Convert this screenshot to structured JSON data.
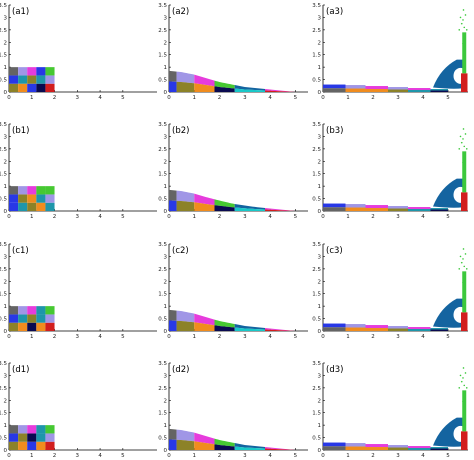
{
  "colors": {
    "dark_gray": "#646464",
    "pink": "#e63cdc",
    "green": "#46c832",
    "light_purple": "#a096e6",
    "teal": "#1e96aa",
    "blue": "#2838e6",
    "olive": "#8c8228",
    "orange": "#f08c1e",
    "navy": "#0a0a50",
    "red": "#d21e1e",
    "cyan": "#19c8c8",
    "ocean_blue": "#1464a0",
    "light_green": "#3cc83c",
    "axis": "#000000"
  },
  "chart_data": [
    {
      "type": "scatter",
      "panel_label": "(a1)",
      "variant": "initial",
      "xlim": [
        0,
        6.5
      ],
      "ylim": [
        0,
        3.5
      ],
      "xticks": [
        0,
        1,
        2,
        3,
        4,
        5
      ],
      "yticks": [
        0,
        0.5,
        1,
        1.5,
        2,
        2.5,
        3,
        3.5
      ],
      "grid_layout": {
        "columns": 5,
        "rows": 3,
        "x_range": [
          0,
          2
        ],
        "y_range": [
          0,
          1
        ],
        "cell_colors": [
          [
            "olive",
            "orange",
            "blue",
            "navy",
            "red"
          ],
          [
            "blue",
            "teal",
            "olive",
            "teal",
            "light_purple"
          ],
          [
            "dark_gray",
            "light_purple",
            "pink",
            "blue",
            "green"
          ]
        ]
      }
    },
    {
      "type": "area",
      "panel_label": "(a2)",
      "variant": "slumping",
      "xlim": [
        0,
        5.5
      ],
      "ylim": [
        0,
        3.5
      ],
      "xticks": [
        0,
        1,
        2,
        3,
        4,
        5
      ],
      "yticks": [
        0,
        0.5,
        1,
        1.5,
        2,
        2.5,
        3,
        3.5
      ],
      "surface_profile": {
        "x": [
          0,
          0.5,
          1,
          1.5,
          2,
          2.5,
          3,
          3.5,
          4,
          4.5,
          5
        ],
        "y": [
          0.85,
          0.8,
          0.7,
          0.55,
          0.4,
          0.3,
          0.2,
          0.15,
          0.1,
          0.05,
          0.0
        ]
      }
    },
    {
      "type": "scatter",
      "panel_label": "(a3)",
      "variant": "impact",
      "xlim": [
        0,
        5.8
      ],
      "ylim": [
        0,
        3.5
      ],
      "xticks": [
        0,
        1,
        2,
        3,
        4,
        5
      ],
      "yticks": [
        0,
        0.5,
        1,
        1.5,
        2,
        2.5,
        3,
        3.5
      ]
    },
    {
      "type": "scatter",
      "panel_label": "(b1)",
      "variant": "initial",
      "xlim": [
        0,
        6.5
      ],
      "ylim": [
        0,
        3.5
      ],
      "xticks": [
        0,
        1,
        2,
        3,
        4,
        5
      ],
      "yticks": [
        0,
        0.5,
        1,
        1.5,
        2,
        2.5,
        3,
        3.5
      ],
      "grid_layout": {
        "columns": 5,
        "rows": 3,
        "x_range": [
          0,
          2
        ],
        "y_range": [
          0,
          1
        ],
        "cell_colors": [
          [
            "blue",
            "teal",
            "olive",
            "orange",
            "teal"
          ],
          [
            "blue",
            "olive",
            "orange",
            "teal",
            "light_purple"
          ],
          [
            "dark_gray",
            "light_purple",
            "pink",
            "green",
            "green"
          ]
        ]
      }
    },
    {
      "type": "area",
      "panel_label": "(b2)",
      "variant": "slumping",
      "xlim": [
        0,
        5.5
      ],
      "ylim": [
        0,
        3.5
      ],
      "xticks": [
        0,
        1,
        2,
        3,
        4,
        5
      ],
      "yticks": [
        0,
        0.5,
        1,
        1.5,
        2,
        2.5,
        3,
        3.5
      ],
      "surface_profile": {
        "x": [
          0,
          0.5,
          1,
          1.5,
          2,
          2.5,
          3,
          3.5,
          4,
          4.5,
          5
        ],
        "y": [
          0.85,
          0.8,
          0.7,
          0.55,
          0.42,
          0.3,
          0.22,
          0.15,
          0.1,
          0.05,
          0.0
        ]
      }
    },
    {
      "type": "scatter",
      "panel_label": "(b3)",
      "variant": "impact",
      "xlim": [
        0,
        5.8
      ],
      "ylim": [
        0,
        3.5
      ],
      "xticks": [
        0,
        1,
        2,
        3,
        4,
        5
      ],
      "yticks": [
        0,
        0.5,
        1,
        1.5,
        2,
        2.5,
        3,
        3.5
      ]
    },
    {
      "type": "scatter",
      "panel_label": "(c1)",
      "variant": "initial",
      "xlim": [
        0,
        6.5
      ],
      "ylim": [
        0,
        3.5
      ],
      "xticks": [
        0,
        1,
        2,
        3,
        4,
        5
      ],
      "yticks": [
        0,
        0.5,
        1,
        1.5,
        2,
        2.5,
        3,
        3.5
      ],
      "grid_layout": {
        "columns": 5,
        "rows": 3,
        "x_range": [
          0,
          2
        ],
        "y_range": [
          0,
          1
        ],
        "cell_colors": [
          [
            "olive",
            "orange",
            "navy",
            "orange",
            "red"
          ],
          [
            "blue",
            "teal",
            "olive",
            "teal",
            "light_purple"
          ],
          [
            "dark_gray",
            "light_purple",
            "pink",
            "teal",
            "green"
          ]
        ]
      }
    },
    {
      "type": "area",
      "panel_label": "(c2)",
      "variant": "slumping",
      "xlim": [
        0,
        5.5
      ],
      "ylim": [
        0,
        3.5
      ],
      "xticks": [
        0,
        1,
        2,
        3,
        4,
        5
      ],
      "yticks": [
        0,
        0.5,
        1,
        1.5,
        2,
        2.5,
        3,
        3.5
      ],
      "surface_profile": {
        "x": [
          0,
          0.5,
          1,
          1.5,
          2,
          2.5,
          3,
          3.5,
          4,
          4.5,
          5
        ],
        "y": [
          0.85,
          0.8,
          0.7,
          0.55,
          0.4,
          0.3,
          0.2,
          0.15,
          0.1,
          0.05,
          0.0
        ]
      }
    },
    {
      "type": "scatter",
      "panel_label": "(c3)",
      "variant": "impact",
      "xlim": [
        0,
        5.8
      ],
      "ylim": [
        0,
        3.5
      ],
      "xticks": [
        0,
        1,
        2,
        3,
        4,
        5
      ],
      "yticks": [
        0,
        0.5,
        1,
        1.5,
        2,
        2.5,
        3,
        3.5
      ]
    },
    {
      "type": "scatter",
      "panel_label": "(d1)",
      "variant": "initial",
      "xlim": [
        0,
        6.5
      ],
      "ylim": [
        0,
        3.5
      ],
      "xticks": [
        0,
        1,
        2,
        3,
        4,
        5
      ],
      "yticks": [
        0,
        0.5,
        1,
        1.5,
        2,
        2.5,
        3,
        3.5
      ],
      "grid_layout": {
        "columns": 5,
        "rows": 3,
        "x_range": [
          0,
          2
        ],
        "y_range": [
          0,
          1
        ],
        "cell_colors": [
          [
            "olive",
            "orange",
            "blue",
            "orange",
            "red"
          ],
          [
            "blue",
            "olive",
            "navy",
            "teal",
            "light_purple"
          ],
          [
            "dark_gray",
            "light_purple",
            "pink",
            "teal",
            "green"
          ]
        ]
      }
    },
    {
      "type": "area",
      "panel_label": "(d2)",
      "variant": "slumping",
      "xlim": [
        0,
        5.5
      ],
      "ylim": [
        0,
        3.5
      ],
      "xticks": [
        0,
        1,
        2,
        3,
        4,
        5
      ],
      "yticks": [
        0,
        0.5,
        1,
        1.5,
        2,
        2.5,
        3,
        3.5
      ],
      "surface_profile": {
        "x": [
          0,
          0.5,
          1,
          1.5,
          2,
          2.5,
          3,
          3.5,
          4,
          4.5,
          5
        ],
        "y": [
          0.85,
          0.8,
          0.7,
          0.55,
          0.4,
          0.3,
          0.2,
          0.15,
          0.1,
          0.05,
          0.0
        ]
      }
    },
    {
      "type": "scatter",
      "panel_label": "(d3)",
      "variant": "impact",
      "xlim": [
        0,
        5.8
      ],
      "ylim": [
        0,
        3.5
      ],
      "xticks": [
        0,
        1,
        2,
        3,
        4,
        5
      ],
      "yticks": [
        0,
        0.5,
        1,
        1.5,
        2,
        2.5,
        3,
        3.5
      ]
    }
  ]
}
